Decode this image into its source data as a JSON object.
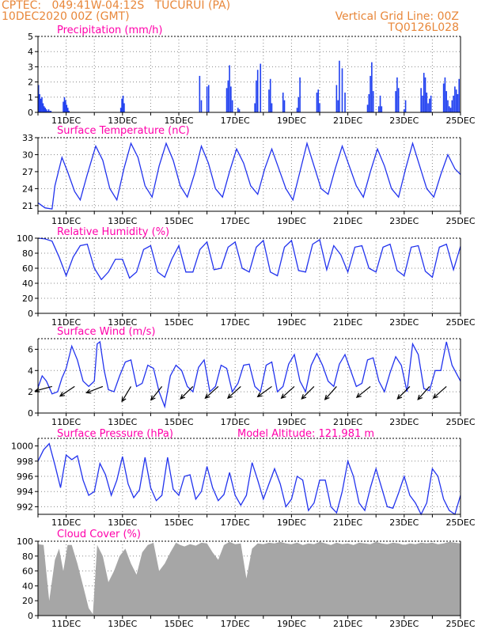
{
  "header": {
    "line1": "CPTEC:   049:41W-04:12S   TUCURUI (PA)",
    "line2": "10DEC2020 00Z (GMT)",
    "grid_note": "Vertical Grid Line: 00Z",
    "code": "TQ0126L028",
    "model_altitude": "Model Altitude: 121.981 m"
  },
  "x_ticks": [
    "11DEC",
    "13DEC",
    "15DEC",
    "17DEC",
    "19DEC",
    "21DEC",
    "23DEC",
    "25DEC"
  ],
  "colors": {
    "title": "#ff00aa",
    "header": "#e8873a",
    "line": "#2233ee",
    "bar": "#1f3ff0",
    "cloud": "#a6a6a6",
    "arrow": "#000000",
    "grid": "#888888"
  },
  "chart_data": [
    {
      "id": "precip",
      "type": "bar",
      "title": "Precipitation (mm/h)",
      "ylim": [
        0,
        5
      ],
      "yticks": [
        0,
        1,
        2,
        3,
        4,
        5
      ],
      "x_unit": "days since 10DEC2020 00Z",
      "x": [
        0.02,
        0.06,
        0.1,
        0.14,
        0.18,
        0.22,
        0.26,
        0.3,
        0.34,
        0.38,
        0.42,
        0.46,
        0.9,
        0.94,
        0.98,
        1.02,
        1.06,
        1.1,
        2.94,
        2.98,
        3.02,
        3.06,
        5.74,
        5.8,
        6.0,
        6.06,
        6.7,
        6.75,
        6.8,
        6.85,
        6.9,
        7.1,
        7.15,
        7.7,
        7.75,
        7.8,
        7.9,
        8.2,
        8.25,
        8.3,
        8.7,
        8.75,
        9.2,
        9.25,
        9.3,
        9.9,
        9.95,
        10.0,
        10.6,
        10.65,
        10.7,
        10.8,
        10.9,
        11.7,
        11.75,
        11.8,
        11.85,
        11.9,
        12.1,
        12.15,
        12.2,
        12.7,
        12.75,
        12.8,
        13.0,
        13.05,
        13.6,
        13.65,
        13.7,
        13.75,
        13.8,
        13.85,
        13.9,
        13.95,
        14.4,
        14.45,
        14.5,
        14.55,
        14.6,
        14.65,
        14.7,
        14.75,
        14.8,
        14.85,
        14.9,
        14.95
      ],
      "values": [
        1.8,
        1.2,
        0.9,
        1.0,
        0.6,
        0.4,
        0.3,
        0.2,
        0.1,
        0.2,
        0.1,
        0.1,
        0.7,
        1.0,
        0.8,
        0.5,
        0.3,
        0.1,
        0.3,
        0.9,
        1.1,
        0.6,
        2.4,
        0.8,
        1.7,
        1.8,
        1.6,
        2.1,
        3.1,
        1.7,
        0.8,
        0.3,
        0.2,
        0.6,
        2.1,
        2.8,
        3.2,
        1.5,
        2.2,
        0.6,
        1.3,
        0.8,
        0.3,
        1.0,
        2.3,
        1.3,
        1.5,
        0.6,
        1.8,
        0.8,
        3.4,
        2.9,
        1.3,
        0.5,
        1.2,
        2.4,
        3.3,
        1.4,
        0.4,
        1.1,
        0.4,
        1.4,
        2.3,
        1.6,
        0.2,
        0.8,
        1.6,
        1.1,
        2.6,
        2.3,
        1.3,
        0.6,
        0.9,
        1.1,
        1.9,
        2.3,
        1.4,
        0.8,
        0.4,
        0.3,
        0.8,
        1.1,
        1.7,
        1.5,
        1.2,
        2.2
      ]
    },
    {
      "id": "temp",
      "type": "line",
      "title": "Surface Temperature (nC)",
      "ylim": [
        20,
        33
      ],
      "yticks": [
        21,
        24,
        27,
        30,
        33
      ],
      "x_unit": "days since 10DEC2020 00Z",
      "x": [
        0.0,
        0.25,
        0.5,
        0.6,
        0.85,
        1.05,
        1.3,
        1.5,
        1.75,
        2.05,
        2.3,
        2.55,
        2.8,
        3.05,
        3.3,
        3.55,
        3.8,
        4.05,
        4.3,
        4.55,
        4.8,
        5.05,
        5.3,
        5.55,
        5.8,
        6.05,
        6.3,
        6.55,
        6.8,
        7.05,
        7.3,
        7.55,
        7.8,
        8.05,
        8.3,
        8.55,
        8.8,
        9.05,
        9.3,
        9.55,
        9.8,
        10.05,
        10.3,
        10.55,
        10.8,
        11.05,
        11.3,
        11.55,
        11.8,
        12.05,
        12.3,
        12.55,
        12.8,
        13.05,
        13.3,
        13.55,
        13.8,
        14.05,
        14.3,
        14.55,
        14.8,
        15.0
      ],
      "values": [
        21.5,
        20.6,
        20.4,
        24.5,
        29.5,
        27.0,
        23.5,
        22.0,
        26.5,
        31.5,
        29.0,
        24.0,
        22.0,
        27.5,
        32.0,
        29.5,
        24.5,
        22.5,
        28.0,
        32.0,
        29.0,
        24.5,
        22.5,
        26.5,
        31.5,
        28.5,
        24.0,
        22.5,
        27.0,
        31.0,
        28.5,
        24.5,
        23.0,
        27.5,
        31.0,
        27.5,
        24.0,
        22.0,
        27.0,
        32.0,
        28.0,
        24.0,
        23.0,
        27.5,
        31.5,
        28.0,
        24.5,
        22.5,
        27.0,
        31.0,
        28.0,
        24.0,
        22.5,
        27.5,
        32.0,
        28.0,
        24.0,
        22.5,
        26.5,
        30.0,
        27.5,
        26.5
      ]
    },
    {
      "id": "rh",
      "type": "line",
      "title": "Relative Humidity (%)",
      "ylim": [
        0,
        100
      ],
      "yticks": [
        0,
        20,
        40,
        60,
        80,
        100
      ],
      "x_unit": "days since 10DEC2020 00Z",
      "x": [
        0.0,
        0.25,
        0.5,
        0.75,
        1.0,
        1.25,
        1.5,
        1.75,
        2.0,
        2.25,
        2.5,
        2.75,
        3.0,
        3.25,
        3.5,
        3.75,
        4.0,
        4.25,
        4.5,
        4.75,
        5.0,
        5.25,
        5.5,
        5.75,
        6.0,
        6.25,
        6.5,
        6.75,
        7.0,
        7.25,
        7.5,
        7.75,
        8.0,
        8.25,
        8.5,
        8.75,
        9.0,
        9.25,
        9.5,
        9.75,
        10.0,
        10.25,
        10.5,
        10.75,
        11.0,
        11.25,
        11.5,
        11.75,
        12.0,
        12.25,
        12.5,
        12.75,
        13.0,
        13.25,
        13.5,
        13.75,
        14.0,
        14.25,
        14.5,
        14.75,
        15.0
      ],
      "values": [
        100,
        99,
        96,
        75,
        50,
        75,
        90,
        92,
        60,
        45,
        55,
        72,
        72,
        47,
        55,
        85,
        90,
        55,
        48,
        72,
        90,
        55,
        55,
        85,
        95,
        58,
        60,
        88,
        95,
        60,
        55,
        88,
        97,
        55,
        50,
        88,
        97,
        57,
        55,
        92,
        98,
        58,
        90,
        78,
        55,
        88,
        90,
        60,
        55,
        88,
        92,
        57,
        50,
        88,
        90,
        56,
        48,
        88,
        92,
        58,
        89
      ]
    },
    {
      "id": "wind",
      "type": "line",
      "title": "Surface Wind (m/s)",
      "ylim": [
        0,
        7
      ],
      "yticks": [
        0,
        2,
        4,
        6
      ],
      "x_unit": "days since 10DEC2020 00Z",
      "x": [
        0.0,
        0.15,
        0.3,
        0.5,
        0.7,
        0.85,
        1.0,
        1.2,
        1.4,
        1.6,
        1.8,
        2.0,
        2.1,
        2.2,
        2.35,
        2.5,
        2.7,
        2.9,
        3.1,
        3.3,
        3.5,
        3.7,
        3.9,
        4.1,
        4.3,
        4.5,
        4.7,
        4.9,
        5.1,
        5.3,
        5.5,
        5.7,
        5.9,
        6.1,
        6.3,
        6.5,
        6.7,
        6.9,
        7.1,
        7.3,
        7.5,
        7.7,
        7.9,
        8.1,
        8.3,
        8.5,
        8.7,
        8.9,
        9.1,
        9.3,
        9.5,
        9.7,
        9.9,
        10.1,
        10.3,
        10.5,
        10.7,
        10.9,
        11.1,
        11.3,
        11.5,
        11.7,
        11.9,
        12.1,
        12.3,
        12.5,
        12.7,
        12.9,
        13.1,
        13.3,
        13.5,
        13.7,
        13.9,
        14.1,
        14.3,
        14.5,
        14.7,
        15.0
      ],
      "values": [
        2.4,
        3.5,
        3.0,
        1.8,
        2.0,
        3.3,
        4.2,
        6.3,
        5.0,
        3.0,
        2.5,
        3.0,
        6.5,
        6.7,
        4.0,
        2.2,
        2.0,
        3.5,
        4.8,
        5.0,
        2.5,
        2.8,
        4.5,
        4.2,
        2.0,
        0.6,
        3.5,
        4.5,
        4.0,
        2.5,
        2.0,
        4.3,
        5.0,
        2.0,
        2.5,
        4.5,
        4.2,
        2.0,
        2.8,
        4.5,
        4.6,
        2.5,
        2.0,
        4.5,
        4.8,
        2.0,
        2.5,
        4.6,
        5.5,
        3.0,
        2.0,
        4.5,
        5.6,
        4.5,
        3.0,
        2.5,
        4.6,
        5.5,
        4.0,
        2.5,
        2.8,
        5.0,
        5.2,
        3.0,
        2.0,
        3.8,
        5.3,
        4.5,
        2.0,
        6.5,
        5.5,
        2.3,
        2.1,
        4.0,
        4.0,
        6.7,
        4.5,
        3.0
      ]
    },
    {
      "id": "pressure",
      "type": "line",
      "title": "Surface Pressure (hPa)",
      "ylim": [
        991,
        1001
      ],
      "yticks": [
        992,
        994,
        996,
        998,
        1000
      ],
      "x_unit": "days since 10DEC2020 00Z",
      "x": [
        0.0,
        0.2,
        0.4,
        0.6,
        0.8,
        1.0,
        1.2,
        1.4,
        1.6,
        1.8,
        2.0,
        2.2,
        2.4,
        2.6,
        2.8,
        3.0,
        3.2,
        3.4,
        3.6,
        3.8,
        4.0,
        4.2,
        4.4,
        4.6,
        4.8,
        5.0,
        5.2,
        5.4,
        5.6,
        5.8,
        6.0,
        6.2,
        6.4,
        6.6,
        6.8,
        7.0,
        7.2,
        7.4,
        7.6,
        7.8,
        8.0,
        8.2,
        8.4,
        8.6,
        8.8,
        9.0,
        9.2,
        9.4,
        9.6,
        9.8,
        10.0,
        10.2,
        10.4,
        10.6,
        10.8,
        11.0,
        11.2,
        11.4,
        11.6,
        11.8,
        12.0,
        12.2,
        12.4,
        12.6,
        12.8,
        13.0,
        13.2,
        13.4,
        13.6,
        13.8,
        14.0,
        14.2,
        14.4,
        14.6,
        14.8,
        15.0
      ],
      "values": [
        998.0,
        999.5,
        1000.3,
        997.5,
        994.5,
        998.8,
        998.2,
        998.7,
        995.5,
        993.5,
        994.0,
        997.7,
        996.2,
        993.5,
        995.5,
        998.6,
        995.0,
        993.2,
        994.2,
        998.5,
        994.5,
        992.8,
        993.5,
        998.5,
        994.3,
        993.5,
        996.0,
        996.2,
        993.0,
        994.0,
        997.3,
        994.5,
        992.8,
        993.6,
        996.5,
        993.5,
        992.2,
        993.5,
        997.8,
        995.5,
        993.0,
        995.0,
        997.0,
        995.0,
        992.0,
        993.0,
        996.0,
        995.5,
        991.5,
        992.5,
        995.5,
        995.5,
        992.0,
        991.2,
        994.0,
        998.0,
        996.0,
        992.5,
        991.5,
        994.5,
        997.0,
        994.5,
        992.0,
        991.8,
        993.8,
        996.0,
        993.5,
        992.5,
        991.0,
        992.5,
        997.0,
        996.0,
        993.0,
        991.5,
        990.5,
        993.5
      ]
    },
    {
      "id": "cloud",
      "type": "area",
      "title": "Cloud Cover (%)",
      "ylim": [
        0,
        100
      ],
      "yticks": [
        0,
        20,
        40,
        60,
        80,
        100
      ],
      "x_unit": "days since 10DEC2020 00Z",
      "x": [
        0.0,
        0.2,
        0.4,
        0.6,
        0.75,
        0.9,
        1.05,
        1.2,
        1.4,
        1.6,
        1.8,
        1.95,
        2.1,
        2.3,
        2.5,
        2.7,
        2.9,
        3.1,
        3.3,
        3.5,
        3.7,
        3.9,
        4.1,
        4.3,
        4.5,
        4.7,
        4.9,
        5.05,
        5.2,
        5.4,
        5.6,
        5.8,
        6.0,
        6.2,
        6.4,
        6.6,
        6.8,
        7.0,
        7.2,
        7.4,
        7.6,
        7.8,
        8.0,
        8.2,
        8.4,
        8.6,
        8.8,
        9.0,
        9.2,
        9.4,
        9.6,
        9.8,
        10.0,
        10.2,
        10.4,
        10.6,
        10.8,
        11.0,
        11.2,
        11.4,
        11.6,
        11.8,
        12.0,
        12.2,
        12.4,
        12.6,
        12.8,
        13.0,
        13.2,
        13.4,
        13.6,
        13.8,
        14.0,
        14.2,
        14.4,
        14.6,
        14.8,
        15.0
      ],
      "values": [
        96,
        95,
        20,
        75,
        90,
        60,
        95,
        95,
        70,
        40,
        10,
        2,
        95,
        80,
        45,
        60,
        80,
        90,
        70,
        55,
        85,
        95,
        98,
        60,
        70,
        85,
        98,
        95,
        93,
        96,
        94,
        98,
        97,
        85,
        75,
        95,
        99,
        96,
        97,
        50,
        90,
        97,
        96,
        98,
        97,
        99,
        97,
        96,
        98,
        95,
        97,
        96,
        99,
        97,
        95,
        98,
        96,
        97,
        95,
        98,
        97,
        96,
        99,
        97,
        96,
        98,
        97,
        95,
        97,
        96,
        98,
        97,
        98,
        96,
        97,
        99,
        98,
        97
      ]
    },
    {
      "id": "wind_vectors",
      "type": "scatter",
      "title": "Surface Wind direction",
      "x_unit": "days since 10DEC2020 00Z",
      "x": [
        0.5,
        1.3,
        2.3,
        3.3,
        4.4,
        5.5,
        6.4,
        7.2,
        8.3,
        9.1,
        9.8,
        10.6,
        11.8,
        13.2,
        13.9,
        14.5
      ],
      "u": [
        -1.5,
        -1.2,
        -1.8,
        -0.6,
        -0.8,
        -0.9,
        -1.0,
        -1.0,
        -1.1,
        -1.0,
        -0.9,
        -0.8,
        -1.0,
        -0.8,
        -0.8,
        -0.9
      ],
      "v": [
        -0.4,
        -0.8,
        -0.7,
        -1.0,
        -1.0,
        -0.9,
        -0.9,
        -0.9,
        -0.8,
        -0.9,
        -0.9,
        -0.9,
        -0.8,
        -0.8,
        -0.9,
        -0.8
      ]
    }
  ]
}
